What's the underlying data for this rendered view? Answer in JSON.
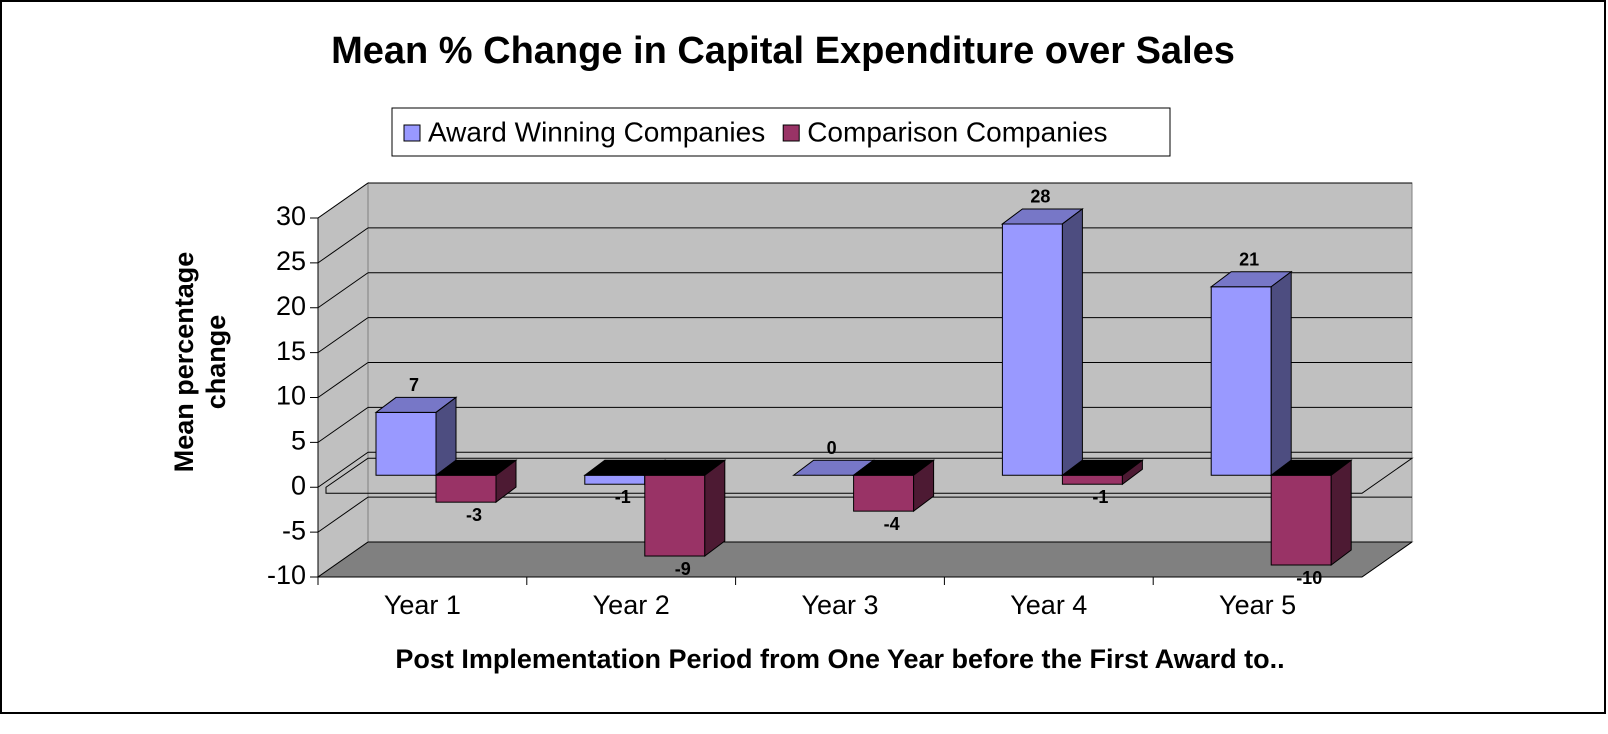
{
  "chart_data": {
    "type": "bar3d",
    "title": "Mean % Change in Capital Expenditure over Sales",
    "xlabel": "Post Implementation Period from One Year before the First Award to..",
    "ylabel": "Mean percentage change",
    "categories": [
      "Year 1",
      "Year 2",
      "Year 3",
      "Year 4",
      "Year 5"
    ],
    "series": [
      {
        "name": "Award Winning Companies",
        "color": "#9999ff",
        "values": [
          7,
          -1,
          0,
          28,
          21
        ]
      },
      {
        "name": "Comparison Companies",
        "color": "#993366",
        "values": [
          -3,
          -9,
          -4,
          -1,
          -10
        ]
      }
    ],
    "ylim": [
      -10,
      30
    ],
    "yticks": [
      -10,
      -5,
      0,
      5,
      10,
      15,
      20,
      25,
      30
    ],
    "grid": true,
    "legend": "top"
  }
}
